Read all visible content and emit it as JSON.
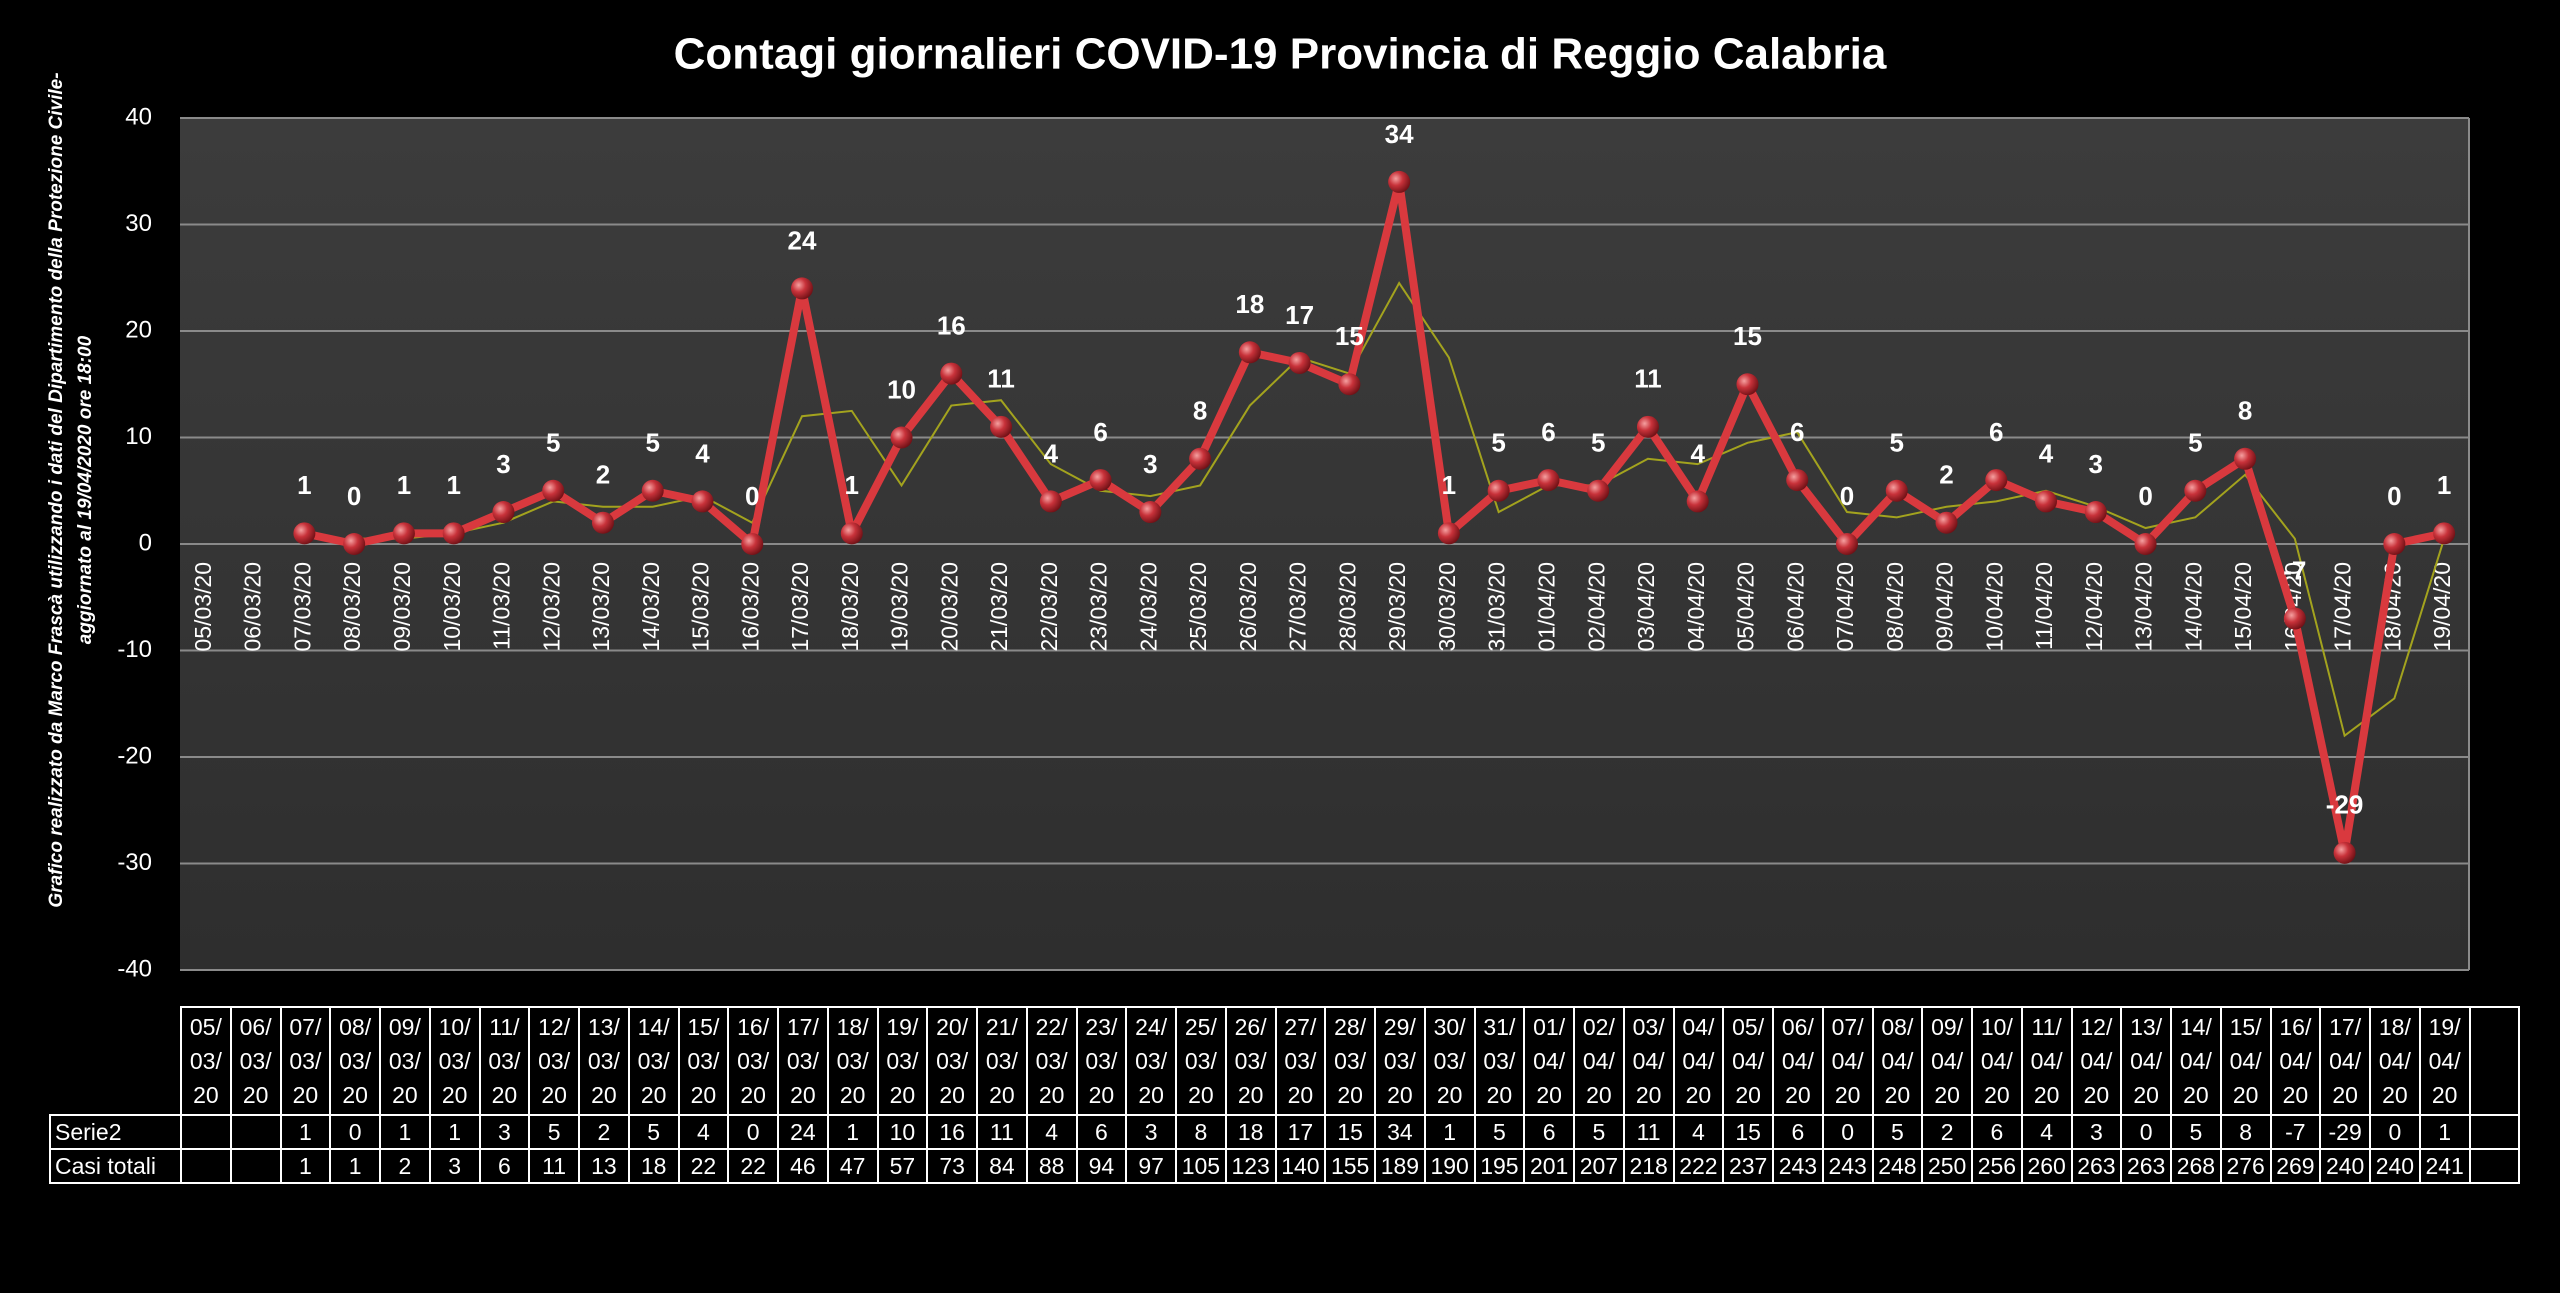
{
  "chart_data": {
    "type": "line",
    "title": "Contagi  giornalieri COVID-19 Provincia di Reggio Calabria",
    "side_note": [
      "Grafico  realizzato da Marco Frascà  utilizzando i dati del Dipartimento  della Protezione Civile-",
      "aggiornato al  19/04/2020 ore 18:00"
    ],
    "categories": [
      "05/03/20",
      "06/03/20",
      "07/03/20",
      "08/03/20",
      "09/03/20",
      "10/03/20",
      "11/03/20",
      "12/03/20",
      "13/03/20",
      "14/03/20",
      "15/03/20",
      "16/03/20",
      "17/03/20",
      "18/03/20",
      "19/03/20",
      "20/03/20",
      "21/03/20",
      "22/03/20",
      "23/03/20",
      "24/03/20",
      "25/03/20",
      "26/03/20",
      "27/03/20",
      "28/03/20",
      "29/03/20",
      "30/03/20",
      "31/03/20",
      "01/04/20",
      "02/04/20",
      "03/04/20",
      "04/04/20",
      "05/04/20",
      "06/04/20",
      "07/04/20",
      "08/04/20",
      "09/04/20",
      "10/04/20",
      "11/04/20",
      "12/04/20",
      "13/04/20",
      "14/04/20",
      "15/04/20",
      "16/04/20",
      "17/04/20",
      "18/04/20",
      "19/04/20"
    ],
    "series": [
      {
        "name": "Serie2",
        "color": "#d9393e",
        "values": [
          null,
          null,
          1,
          0,
          1,
          1,
          3,
          5,
          2,
          5,
          4,
          0,
          24,
          1,
          10,
          16,
          11,
          4,
          6,
          3,
          8,
          18,
          17,
          15,
          34,
          1,
          5,
          6,
          5,
          11,
          4,
          15,
          6,
          0,
          5,
          2,
          6,
          4,
          3,
          0,
          5,
          8,
          -7,
          -29,
          0,
          1
        ]
      }
    ],
    "totals": {
      "name": "Casi totali",
      "values": [
        null,
        null,
        1,
        1,
        2,
        3,
        6,
        11,
        13,
        18,
        22,
        22,
        46,
        47,
        57,
        73,
        84,
        88,
        94,
        97,
        105,
        123,
        140,
        155,
        189,
        190,
        195,
        201,
        207,
        218,
        222,
        237,
        243,
        243,
        248,
        250,
        256,
        260,
        263,
        263,
        268,
        276,
        269,
        240,
        240,
        241
      ]
    },
    "trendline": {
      "type": "moving_average",
      "period": 2,
      "color": "#a3a31e"
    },
    "ylim": [
      -40,
      40
    ],
    "yticks": [
      -40,
      -30,
      -20,
      -10,
      0,
      10,
      20,
      30,
      40
    ],
    "grid": true
  }
}
